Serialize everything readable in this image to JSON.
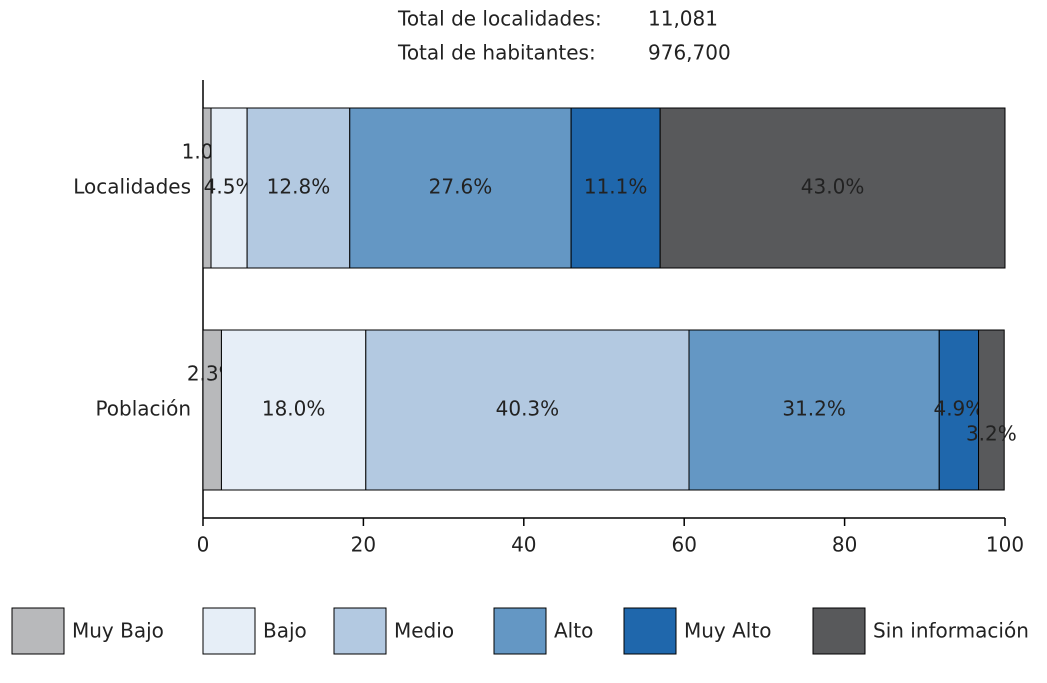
{
  "chart_data": {
    "type": "stacked_barh",
    "annotations": [
      {
        "label": "Total de localidades:",
        "value": "11,081"
      },
      {
        "label": "Total de habitantes:",
        "value": "976,700"
      }
    ],
    "categories": [
      "Localidades",
      "Población"
    ],
    "series": [
      {
        "name": "Muy Bajo",
        "color": "#b8b9bb",
        "values": [
          1.0,
          2.3
        ],
        "value_labels": [
          "1.0%",
          "2.3%"
        ]
      },
      {
        "name": "Bajo",
        "color": "#e6eef7",
        "values": [
          4.5,
          18.0
        ],
        "value_labels": [
          "4.5%",
          "18.0%"
        ]
      },
      {
        "name": "Medio",
        "color": "#b3c9e1",
        "values": [
          12.8,
          40.3
        ],
        "value_labels": [
          "12.8%",
          "40.3%"
        ]
      },
      {
        "name": "Alto",
        "color": "#6497c4",
        "values": [
          27.6,
          31.2
        ],
        "value_labels": [
          "27.6%",
          "31.2%"
        ]
      },
      {
        "name": "Muy Alto",
        "color": "#1f67ac",
        "values": [
          11.1,
          4.9
        ],
        "value_labels": [
          "11.1%",
          "4.9%"
        ]
      },
      {
        "name": "Sin información",
        "color": "#58595b",
        "values": [
          43.0,
          3.2
        ],
        "value_labels": [
          "43.0%",
          "3.2%"
        ]
      }
    ],
    "xlim": [
      0,
      100
    ],
    "xticks": [
      0,
      20,
      40,
      60,
      80,
      100
    ],
    "legend": "bottom"
  }
}
